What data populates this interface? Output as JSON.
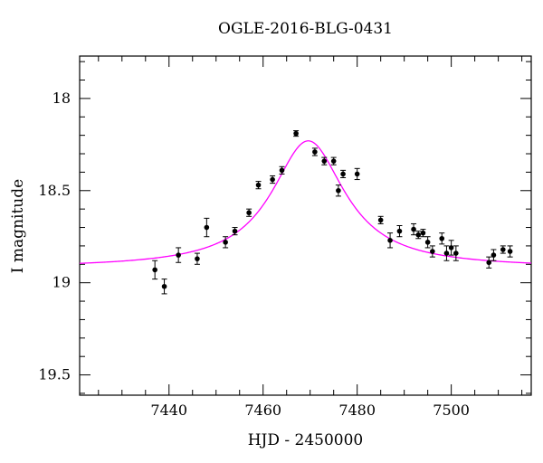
{
  "chart_data": {
    "type": "scatter",
    "title": "OGLE-2016-BLG-0431",
    "xlabel": "HJD - 2450000",
    "ylabel": "I magnitude",
    "xlim": [
      7421,
      7517
    ],
    "ylim": [
      19.61,
      17.77
    ],
    "y_inverted": true,
    "grid": false,
    "x_ticks": [
      7440,
      7460,
      7480,
      7500
    ],
    "y_ticks": [
      18,
      18.5,
      19,
      19.5
    ],
    "x_tick_labels": [
      "7440",
      "7460",
      "7480",
      "7500"
    ],
    "y_tick_labels": [
      "18",
      "18.5",
      "19",
      "19.5"
    ],
    "colors": {
      "model": "#ff00ff",
      "points": "#000000"
    },
    "model": {
      "name": "",
      "t0": 7469.6,
      "baseline": 18.92,
      "peak_mag": 18.23,
      "width_days": 9.5
    },
    "series": [
      {
        "name": "",
        "points": [
          {
            "x": 7437.0,
            "y": 18.93,
            "err": 0.05
          },
          {
            "x": 7439.0,
            "y": 19.02,
            "err": 0.04
          },
          {
            "x": 7442.0,
            "y": 18.85,
            "err": 0.04
          },
          {
            "x": 7446.0,
            "y": 18.87,
            "err": 0.03
          },
          {
            "x": 7448.0,
            "y": 18.7,
            "err": 0.05
          },
          {
            "x": 7452.0,
            "y": 18.78,
            "err": 0.03
          },
          {
            "x": 7454.0,
            "y": 18.72,
            "err": 0.02
          },
          {
            "x": 7457.0,
            "y": 18.62,
            "err": 0.02
          },
          {
            "x": 7459.0,
            "y": 18.47,
            "err": 0.02
          },
          {
            "x": 7462.0,
            "y": 18.44,
            "err": 0.02
          },
          {
            "x": 7464.0,
            "y": 18.39,
            "err": 0.02
          },
          {
            "x": 7467.0,
            "y": 18.19,
            "err": 0.015
          },
          {
            "x": 7471.0,
            "y": 18.29,
            "err": 0.02
          },
          {
            "x": 7473.0,
            "y": 18.34,
            "err": 0.02
          },
          {
            "x": 7475.0,
            "y": 18.34,
            "err": 0.02
          },
          {
            "x": 7476.0,
            "y": 18.5,
            "err": 0.03
          },
          {
            "x": 7477.0,
            "y": 18.41,
            "err": 0.02
          },
          {
            "x": 7480.0,
            "y": 18.41,
            "err": 0.03
          },
          {
            "x": 7485.0,
            "y": 18.66,
            "err": 0.02
          },
          {
            "x": 7487.0,
            "y": 18.77,
            "err": 0.04
          },
          {
            "x": 7489.0,
            "y": 18.72,
            "err": 0.03
          },
          {
            "x": 7492.0,
            "y": 18.71,
            "err": 0.03
          },
          {
            "x": 7493.0,
            "y": 18.74,
            "err": 0.02
          },
          {
            "x": 7494.0,
            "y": 18.73,
            "err": 0.02
          },
          {
            "x": 7495.0,
            "y": 18.78,
            "err": 0.03
          },
          {
            "x": 7496.0,
            "y": 18.83,
            "err": 0.03
          },
          {
            "x": 7498.0,
            "y": 18.76,
            "err": 0.03
          },
          {
            "x": 7499.0,
            "y": 18.84,
            "err": 0.04
          },
          {
            "x": 7500.0,
            "y": 18.81,
            "err": 0.04
          },
          {
            "x": 7501.0,
            "y": 18.84,
            "err": 0.04
          },
          {
            "x": 7508.0,
            "y": 18.89,
            "err": 0.03
          },
          {
            "x": 7509.0,
            "y": 18.85,
            "err": 0.03
          },
          {
            "x": 7511.0,
            "y": 18.82,
            "err": 0.02
          },
          {
            "x": 7512.5,
            "y": 18.83,
            "err": 0.03
          }
        ]
      }
    ]
  }
}
